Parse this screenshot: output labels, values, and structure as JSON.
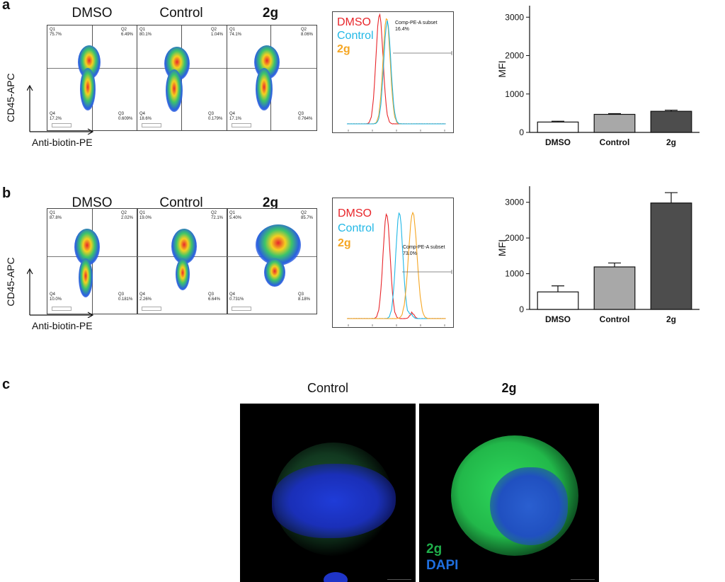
{
  "panels": {
    "a": {
      "label": "a",
      "facs_titles": [
        "DMSO",
        "Control",
        "2g"
      ],
      "facs_quadrants": [
        {
          "q1_label": "Q1",
          "q1": "75.7%",
          "q2_label": "Q2",
          "q2": "6.49%",
          "q3_label": "Q3",
          "q3": "0.609%",
          "q4_label": "Q4",
          "q4": "17.2%"
        },
        {
          "q1_label": "Q1",
          "q1": "80.1%",
          "q2_label": "Q2",
          "q2": "1.04%",
          "q3_label": "Q3",
          "q3": "0.179%",
          "q4_label": "Q4",
          "q4": "18.6%"
        },
        {
          "q1_label": "Q1",
          "q1": "74.1%",
          "q2_label": "Q2",
          "q2": "8.06%",
          "q3_label": "Q3",
          "q3": "0.764%",
          "q4_label": "Q4",
          "q4": "17.1%"
        }
      ],
      "y_axis_label": "CD45-APC",
      "x_axis_label": "Anti-biotin-PE",
      "histogram": {
        "legend": [
          "DMSO",
          "Control",
          "2g"
        ],
        "gate_label": "Comp-PE-A subset",
        "gate_value": "16.4%"
      }
    },
    "b": {
      "label": "b",
      "facs_titles": [
        "DMSO",
        "Control",
        "2g"
      ],
      "facs_quadrants": [
        {
          "q1_label": "Q1",
          "q1": "87.8%",
          "q2_label": "Q2",
          "q2": "2.02%",
          "q3_label": "Q3",
          "q3": "0.181%",
          "q4_label": "Q4",
          "q4": "10.0%"
        },
        {
          "q1_label": "Q1",
          "q1": "19.0%",
          "q2_label": "Q2",
          "q2": "72.1%",
          "q3_label": "Q3",
          "q3": "6.64%",
          "q4_label": "Q4",
          "q4": "2.26%"
        },
        {
          "q1_label": "Q1",
          "q1": "5.40%",
          "q2_label": "Q2",
          "q2": "85.7%",
          "q3_label": "Q3",
          "q3": "8.18%",
          "q4_label": "Q4",
          "q4": "0.731%"
        }
      ],
      "y_axis_label": "CD45-APC",
      "x_axis_label": "Anti-biotin-PE",
      "histogram": {
        "legend": [
          "DMSO",
          "Control",
          "2g"
        ],
        "gate_label": "Comp-PE-A subset",
        "gate_value": "73.0%"
      }
    },
    "c": {
      "label": "c",
      "titles": [
        "Control",
        "2g"
      ],
      "legend": [
        "2g",
        "DAPI"
      ]
    }
  },
  "colors": {
    "dmso": "#e8262b",
    "control": "#22b8e6",
    "g2": "#f5a623",
    "bar_dmso": "#ffffff",
    "bar_control": "#a8a8a8",
    "bar_2g": "#4d4d4d",
    "green": "#1fae4a",
    "blue": "#1f6fe0"
  },
  "chart_data": [
    {
      "type": "bar",
      "categories": [
        "DMSO",
        "Control",
        "2g"
      ],
      "values": [
        270,
        470,
        550
      ],
      "errors": [
        20,
        20,
        30
      ],
      "ylabel": "MFI",
      "ylim": [
        0,
        3300
      ],
      "yticks": [
        0,
        1000,
        2000,
        3000
      ]
    },
    {
      "type": "bar",
      "categories": [
        "DMSO",
        "Control",
        "2g"
      ],
      "values": [
        490,
        1190,
        2980
      ],
      "errors": [
        170,
        110,
        290
      ],
      "ylabel": "MFI",
      "ylim": [
        0,
        3450
      ],
      "yticks": [
        0,
        1000,
        2000,
        3000
      ]
    }
  ]
}
